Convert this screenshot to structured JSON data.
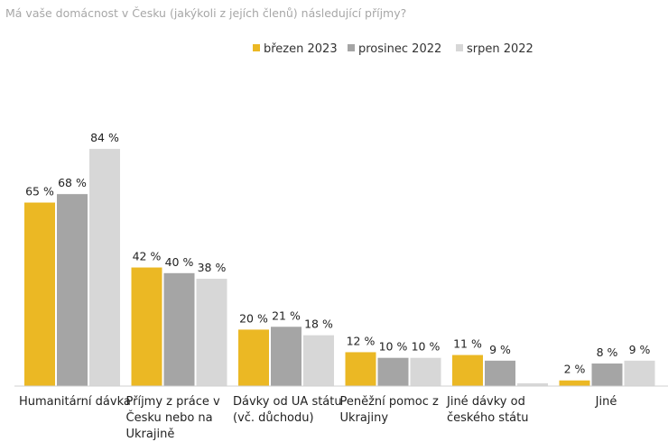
{
  "chart_data": {
    "type": "bar",
    "title": "Má vaše domácnost v Česku (jakýkoli z jejích členů) následující příjmy?",
    "xlabel": "",
    "ylabel": "",
    "ylim": [
      0,
      100
    ],
    "grid": false,
    "legend_position": "top-right",
    "value_suffix": " %",
    "categories": [
      [
        "Humanitární dávka"
      ],
      [
        "Příjmy z práce v",
        "Česku nebo na",
        "Ukrajině"
      ],
      [
        "Dávky od UA státu",
        "(vč. důchodu)"
      ],
      [
        "Peněžní pomoc z",
        "Ukrajiny"
      ],
      [
        "Jiné dávky od",
        "českého státu"
      ],
      [
        "Jiné"
      ]
    ],
    "series": [
      {
        "name": "březen 2023",
        "color": "#ebb824",
        "values": [
          65,
          42,
          20,
          12,
          11,
          2
        ]
      },
      {
        "name": "prosinec 2022",
        "color": "#a5a5a5",
        "values": [
          68,
          40,
          21,
          10,
          9,
          8
        ]
      },
      {
        "name": "srpen 2022",
        "color": "#d7d7d7",
        "values": [
          84,
          38,
          18,
          10,
          null,
          9
        ]
      }
    ],
    "missing_bar": {
      "series": 2,
      "category": 4,
      "value": 1
    }
  }
}
